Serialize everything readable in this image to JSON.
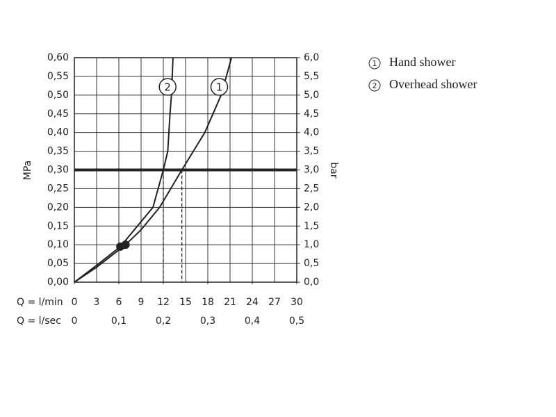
{
  "chart_data": {
    "type": "line",
    "ylabel": "MPa",
    "y2label": "bar",
    "xlabel": "Q = l/min",
    "x2label": "Q = l/sec",
    "xlim": [
      0,
      30
    ],
    "xticks": [
      0,
      3,
      6,
      9,
      12,
      15,
      18,
      21,
      24,
      27,
      30
    ],
    "x2lim": [
      0,
      0.5
    ],
    "x2ticks": [
      0,
      {
        "value": 0.1,
        "label": "0,1"
      },
      {
        "value": 0.2,
        "label": "0,2"
      },
      {
        "value": 0.3,
        "label": "0,3"
      },
      {
        "value": 0.4,
        "label": "0,4"
      },
      {
        "value": 0.5,
        "label": "0,5"
      }
    ],
    "ylim": [
      0,
      0.6
    ],
    "yticks": [
      {
        "value": 0,
        "label": "0,00"
      },
      {
        "value": 0.05,
        "label": "0,05"
      },
      {
        "value": 0.1,
        "label": "0,10"
      },
      {
        "value": 0.15,
        "label": "0,15"
      },
      {
        "value": 0.2,
        "label": "0,20"
      },
      {
        "value": 0.25,
        "label": "0,25"
      },
      {
        "value": 0.3,
        "label": "0,30"
      },
      {
        "value": 0.35,
        "label": "0,35"
      },
      {
        "value": 0.4,
        "label": "0,40"
      },
      {
        "value": 0.45,
        "label": "0,45"
      },
      {
        "value": 0.5,
        "label": "0,50"
      },
      {
        "value": 0.55,
        "label": "0,55"
      },
      {
        "value": 0.6,
        "label": "0,60"
      }
    ],
    "y2lim": [
      0,
      6
    ],
    "y2ticks": [
      {
        "value": 0,
        "label": "0,0"
      },
      {
        "value": 0.5,
        "label": "0,5"
      },
      {
        "value": 1,
        "label": "1,0"
      },
      {
        "value": 1.5,
        "label": "1,5"
      },
      {
        "value": 2,
        "label": "2,0"
      },
      {
        "value": 2.5,
        "label": "2,5"
      },
      {
        "value": 3,
        "label": "3,0"
      },
      {
        "value": 3.5,
        "label": "3,5"
      },
      {
        "value": 4,
        "label": "4,0"
      },
      {
        "value": 4.5,
        "label": "4,5"
      },
      {
        "value": 5,
        "label": "5,0"
      },
      {
        "value": 5.5,
        "label": "5,5"
      },
      {
        "value": 6,
        "label": "6,0"
      }
    ],
    "grid": true,
    "hline": 0.3,
    "drop_lines": [
      12,
      14.5
    ],
    "series": [
      {
        "name": "Hand shower",
        "label": "1",
        "color": "#222222",
        "x": [
          0,
          3,
          6.9,
          9,
          11.5,
          14.5,
          17.6,
          19.8,
          20.5,
          21.2
        ],
        "values": [
          0,
          0.04,
          0.1,
          0.14,
          0.2,
          0.3,
          0.4,
          0.5,
          0.55,
          0.6
        ],
        "marker": {
          "x": 6.9,
          "y": 0.1
        }
      },
      {
        "name": "Overhead shower",
        "label": "2",
        "color": "#222222",
        "x": [
          0,
          3,
          6.2,
          8.5,
          10.6,
          12,
          12.6,
          12.9,
          13.1,
          13.3
        ],
        "values": [
          0,
          0.045,
          0.095,
          0.15,
          0.2,
          0.3,
          0.35,
          0.45,
          0.5,
          0.6
        ],
        "marker": {
          "x": 6.2,
          "y": 0.095
        }
      }
    ]
  }
}
